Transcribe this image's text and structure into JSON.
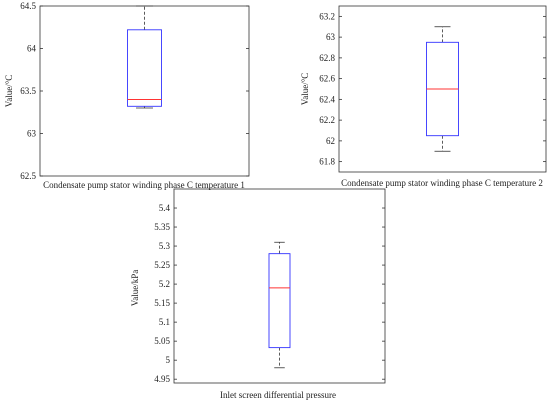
{
  "chart_data": [
    {
      "type": "box",
      "xlabel": "Condensate pump stator winding phase C temperature 1",
      "ylabel": "Value/°C",
      "ylim": [
        62.5,
        64.5
      ],
      "yticks": [
        62.5,
        63,
        63.5,
        64,
        64.5
      ],
      "ytick_labels": [
        "62.5",
        "63",
        "63.5",
        "64",
        "64.5"
      ],
      "grid": false,
      "box": {
        "min": 63.3,
        "q1": 63.32,
        "median": 63.4,
        "q3": 64.22,
        "max": 64.5
      },
      "colors": {
        "box": "#3333ff",
        "median": "#ff3333",
        "whisker": "#333333"
      }
    },
    {
      "type": "box",
      "xlabel": "Condensate pump stator winding phase C temperature 2",
      "ylabel": "Value/°C",
      "ylim": [
        61.7,
        63.3
      ],
      "yticks": [
        61.8,
        62,
        62.2,
        62.4,
        62.6,
        62.8,
        63,
        63.2
      ],
      "ytick_labels": [
        "61.8",
        "62",
        "62.2",
        "62.4",
        "62.6",
        "62.8",
        "63",
        "63.2"
      ],
      "grid": false,
      "box": {
        "min": 61.9,
        "q1": 62.05,
        "median": 62.5,
        "q3": 62.95,
        "max": 63.1
      },
      "colors": {
        "box": "#3333ff",
        "median": "#ff3333",
        "whisker": "#333333"
      }
    },
    {
      "type": "box",
      "xlabel": "Inlet screen differential pressure",
      "ylabel": "Value/kPa",
      "ylim": [
        4.94,
        5.45
      ],
      "yticks": [
        4.95,
        5,
        5.05,
        5.1,
        5.15,
        5.2,
        5.25,
        5.3,
        5.35,
        5.4
      ],
      "ytick_labels": [
        "4.95",
        "5",
        "5.05",
        "5.1",
        "5.15",
        "5.2",
        "5.25",
        "5.3",
        "5.35",
        "5.4"
      ],
      "grid": false,
      "box": {
        "min": 4.98,
        "q1": 5.033,
        "median": 5.19,
        "q3": 5.28,
        "max": 5.31
      },
      "colors": {
        "box": "#3333ff",
        "median": "#ff3333",
        "whisker": "#333333"
      }
    }
  ]
}
